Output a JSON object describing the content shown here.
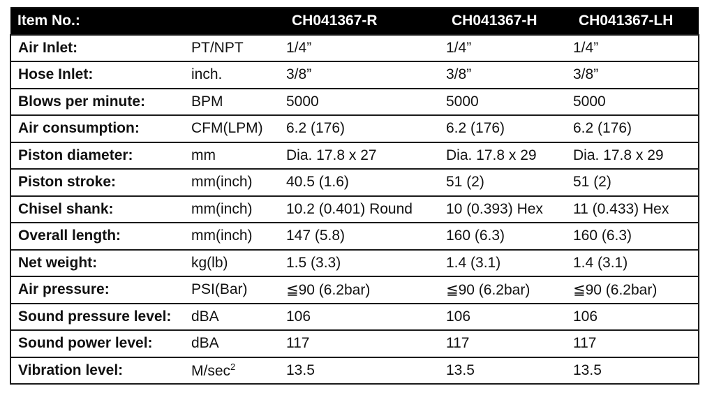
{
  "header": {
    "item_label": "Item No.:",
    "models": [
      "CH041367-R",
      "CH041367-H",
      "CH041367-LH"
    ]
  },
  "rows": [
    {
      "label": "Air Inlet:",
      "unit": "PT/NPT",
      "values": [
        "1/4”",
        "1/4”",
        "1/4”"
      ]
    },
    {
      "label": "Hose Inlet:",
      "unit": "inch.",
      "values": [
        "3/8”",
        "3/8”",
        "3/8”"
      ]
    },
    {
      "label": "Blows per minute:",
      "unit": "BPM",
      "values": [
        "5000",
        "5000",
        "5000"
      ]
    },
    {
      "label": "Air consumption:",
      "unit": "CFM(LPM)",
      "values": [
        "6.2 (176)",
        "6.2 (176)",
        "6.2 (176)"
      ]
    },
    {
      "label": "Piston diameter:",
      "unit": "mm",
      "values": [
        "Dia. 17.8 x 27",
        "Dia. 17.8 x 29",
        "Dia. 17.8 x 29"
      ]
    },
    {
      "label": "Piston stroke:",
      "unit": "mm(inch)",
      "values": [
        "40.5 (1.6)",
        "51 (2)",
        "51 (2)"
      ]
    },
    {
      "label": "Chisel shank:",
      "unit": "mm(inch)",
      "values": [
        "10.2 (0.401) Round",
        "10 (0.393) Hex",
        "11 (0.433) Hex"
      ]
    },
    {
      "label": "Overall length:",
      "unit": "mm(inch)",
      "values": [
        "147 (5.8)",
        "160 (6.3)",
        "160 (6.3)"
      ]
    },
    {
      "label": "Net weight:",
      "unit": "kg(lb)",
      "values": [
        "1.5 (3.3)",
        "1.4 (3.1)",
        "1.4 (3.1)"
      ]
    },
    {
      "label": "Air pressure:",
      "unit": "PSI(Bar)",
      "values": [
        "≦90 (6.2bar)",
        "≦90 (6.2bar)",
        "≦90 (6.2bar)"
      ]
    },
    {
      "label": "Sound pressure level:",
      "unit": "dBA",
      "values": [
        "106",
        "106",
        "106"
      ]
    },
    {
      "label": "Sound power level:",
      "unit": "dBA",
      "values": [
        "117",
        "117",
        "117"
      ]
    },
    {
      "label": "Vibration level:",
      "unit": "M/sec",
      "unit_sup": "2",
      "values": [
        "13.5",
        "13.5",
        "13.5"
      ]
    }
  ]
}
